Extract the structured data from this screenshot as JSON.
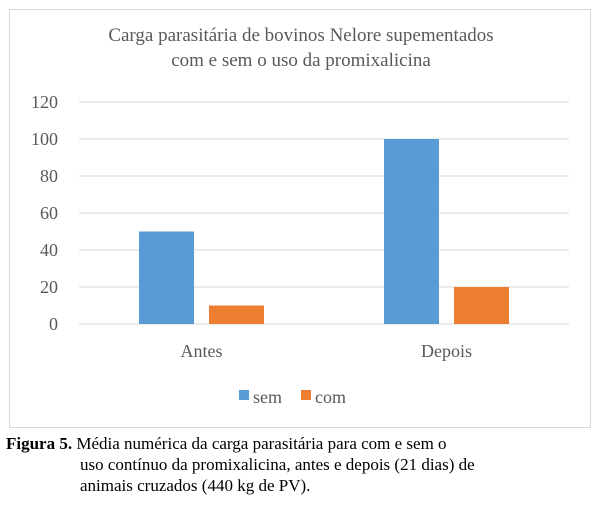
{
  "chart_data": {
    "type": "bar",
    "title_lines": [
      "Carga parasitária de bovinos Nelore supementados",
      "com e sem o uso da promixalicina"
    ],
    "categories": [
      "Antes",
      "Depois"
    ],
    "series": [
      {
        "name": "sem",
        "values": [
          50,
          100
        ],
        "color": "#5b9bd5"
      },
      {
        "name": "com",
        "values": [
          10,
          20
        ],
        "color": "#ed7d31"
      }
    ],
    "ylim": [
      0,
      120
    ],
    "yticks": [
      0,
      20,
      40,
      60,
      80,
      100,
      120
    ],
    "grid": true,
    "legend": "bottom",
    "xlabel": "",
    "ylabel": ""
  },
  "caption": {
    "label": "Figura 5.",
    "line1": "Média numérica da carga parasitária para com e sem o",
    "line2": "uso contínuo da promixalicina, antes e depois (21 dias) de",
    "line3": "animais cruzados (440 kg de PV)."
  },
  "colors": {
    "grid": "#d9d9d9",
    "text": "#595959",
    "border": "#d9d9d9"
  }
}
